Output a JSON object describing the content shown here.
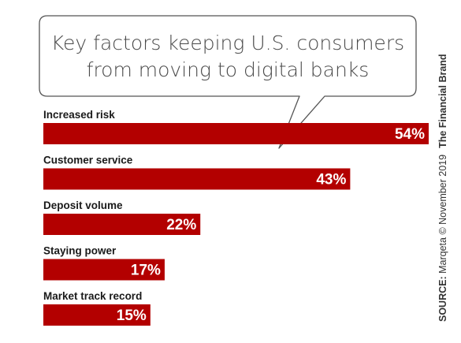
{
  "colors": {
    "bar": "#b30000",
    "text": "#1a1a1a",
    "title": "#4a4a4a",
    "bubble_border": "#555555"
  },
  "source": {
    "prefix": "SOURCE:",
    "text": " Marqeta © November 2019",
    "brand": "The Financial Brand"
  },
  "chart_data": {
    "type": "bar",
    "orientation": "horizontal",
    "title": "Key factors keeping U.S. consumers from moving to digital banks",
    "title_lines": [
      "Key factors keeping U.S. consumers",
      "from moving to digital banks"
    ],
    "categories": [
      "Increased risk",
      "Customer service",
      "Deposit volume",
      "Staying power",
      "Market track record"
    ],
    "values": [
      54,
      43,
      22,
      17,
      15
    ],
    "value_labels": [
      "54%",
      "43%",
      "22%",
      "17%",
      "15%"
    ],
    "unit": "%",
    "xlim": [
      0,
      54
    ],
    "grid": false,
    "legend": "none"
  }
}
